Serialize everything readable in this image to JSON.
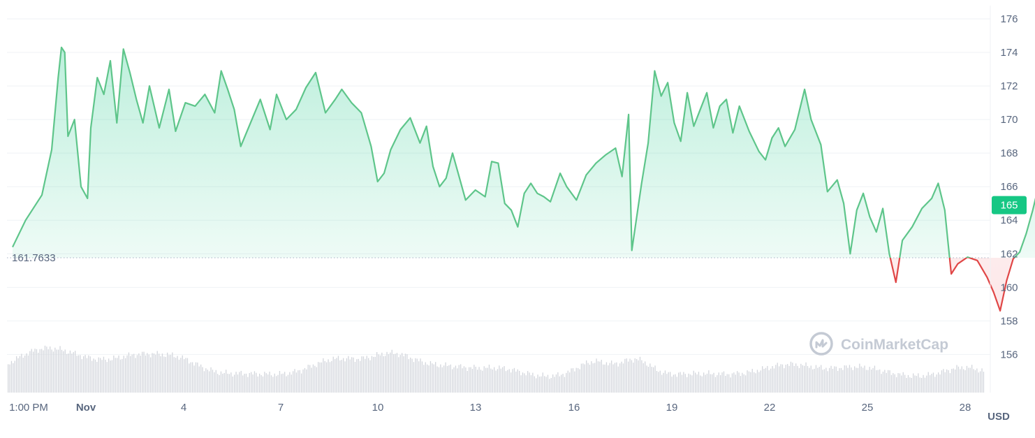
{
  "chart_data": {
    "type": "line",
    "x_tick_labels": [
      "1:00 PM",
      "Nov",
      "4",
      "7",
      "10",
      "13",
      "16",
      "19",
      "22",
      "25",
      "28"
    ],
    "y_tick_labels": [
      "176",
      "174",
      "172",
      "170",
      "168",
      "166",
      "164",
      "162",
      "160",
      "158",
      "156"
    ],
    "ylim": [
      154.5,
      176.5
    ],
    "baseline": 161.7633,
    "baseline_label": "161.7633",
    "current_price_label": "165",
    "current_price": 164.9,
    "unit_label": "USD",
    "watermark": "CoinMarketCap",
    "grid": true,
    "colors": {
      "above": "#16c784",
      "line_above": "#5ec58a",
      "below": "#e04646",
      "bar": "#d3d6dc",
      "grid": "#eff2f5"
    },
    "series": [
      {
        "points": [
          [
            0,
            162.4
          ],
          [
            0.4,
            164.0
          ],
          [
            0.9,
            165.5
          ],
          [
            1.2,
            168.2
          ],
          [
            1.4,
            172.5
          ],
          [
            1.5,
            174.3
          ],
          [
            1.6,
            174.0
          ],
          [
            1.7,
            169.0
          ],
          [
            1.9,
            170.0
          ],
          [
            2.1,
            166.0
          ],
          [
            2.3,
            165.3
          ],
          [
            2.4,
            169.5
          ],
          [
            2.6,
            172.5
          ],
          [
            2.8,
            171.5
          ],
          [
            3.0,
            173.5
          ],
          [
            3.2,
            169.8
          ],
          [
            3.4,
            174.2
          ],
          [
            3.6,
            172.8
          ],
          [
            3.8,
            171.2
          ],
          [
            4.0,
            169.8
          ],
          [
            4.2,
            172.0
          ],
          [
            4.5,
            169.5
          ],
          [
            4.8,
            171.8
          ],
          [
            5.0,
            169.3
          ],
          [
            5.3,
            171.0
          ],
          [
            5.6,
            170.8
          ],
          [
            5.9,
            171.5
          ],
          [
            6.2,
            170.4
          ],
          [
            6.4,
            172.9
          ],
          [
            6.6,
            171.8
          ],
          [
            6.8,
            170.6
          ],
          [
            7.0,
            168.4
          ],
          [
            7.3,
            169.8
          ],
          [
            7.6,
            171.2
          ],
          [
            7.9,
            169.4
          ],
          [
            8.1,
            171.5
          ],
          [
            8.4,
            170.0
          ],
          [
            8.7,
            170.6
          ],
          [
            9.0,
            171.9
          ],
          [
            9.3,
            172.8
          ],
          [
            9.6,
            170.4
          ],
          [
            9.9,
            171.2
          ],
          [
            10.1,
            171.8
          ],
          [
            10.4,
            171.0
          ],
          [
            10.7,
            170.4
          ],
          [
            11.0,
            168.4
          ],
          [
            11.2,
            166.3
          ],
          [
            11.4,
            166.8
          ],
          [
            11.6,
            168.2
          ],
          [
            11.9,
            169.4
          ],
          [
            12.2,
            170.1
          ],
          [
            12.5,
            168.6
          ],
          [
            12.7,
            169.6
          ],
          [
            12.9,
            167.2
          ],
          [
            13.1,
            166.0
          ],
          [
            13.3,
            166.5
          ],
          [
            13.5,
            168.0
          ],
          [
            13.7,
            166.6
          ],
          [
            13.9,
            165.2
          ],
          [
            14.2,
            165.8
          ],
          [
            14.5,
            165.4
          ],
          [
            14.7,
            167.5
          ],
          [
            14.9,
            167.4
          ],
          [
            15.1,
            165.0
          ],
          [
            15.3,
            164.6
          ],
          [
            15.5,
            163.6
          ],
          [
            15.7,
            165.6
          ],
          [
            15.9,
            166.2
          ],
          [
            16.1,
            165.6
          ],
          [
            16.3,
            165.4
          ],
          [
            16.5,
            165.1
          ],
          [
            16.8,
            166.8
          ],
          [
            17.0,
            166.0
          ],
          [
            17.3,
            165.2
          ],
          [
            17.6,
            166.7
          ],
          [
            17.9,
            167.4
          ],
          [
            18.2,
            167.9
          ],
          [
            18.5,
            168.3
          ],
          [
            18.7,
            166.6
          ],
          [
            18.9,
            170.3
          ],
          [
            19.0,
            162.2
          ],
          [
            19.3,
            166.2
          ],
          [
            19.5,
            168.6
          ],
          [
            19.7,
            172.9
          ],
          [
            19.9,
            171.4
          ],
          [
            20.1,
            172.2
          ],
          [
            20.3,
            169.8
          ],
          [
            20.5,
            168.7
          ],
          [
            20.7,
            171.6
          ],
          [
            20.9,
            169.6
          ],
          [
            21.1,
            170.6
          ],
          [
            21.3,
            171.6
          ],
          [
            21.5,
            169.5
          ],
          [
            21.7,
            170.8
          ],
          [
            21.9,
            171.2
          ],
          [
            22.1,
            169.2
          ],
          [
            22.3,
            170.8
          ],
          [
            22.6,
            169.3
          ],
          [
            22.9,
            168.1
          ],
          [
            23.1,
            167.6
          ],
          [
            23.3,
            168.9
          ],
          [
            23.5,
            169.5
          ],
          [
            23.7,
            168.4
          ],
          [
            24.0,
            169.4
          ],
          [
            24.3,
            171.8
          ],
          [
            24.5,
            170.0
          ],
          [
            24.8,
            168.5
          ],
          [
            25.0,
            165.7
          ],
          [
            25.3,
            166.4
          ],
          [
            25.5,
            165.0
          ],
          [
            25.7,
            162.0
          ],
          [
            25.9,
            164.6
          ],
          [
            26.1,
            165.6
          ],
          [
            26.3,
            164.2
          ],
          [
            26.5,
            163.3
          ],
          [
            26.7,
            164.7
          ],
          [
            26.9,
            162.0
          ],
          [
            27.1,
            160.3
          ],
          [
            27.3,
            162.8
          ],
          [
            27.6,
            163.6
          ],
          [
            27.9,
            164.7
          ],
          [
            28.2,
            165.3
          ],
          [
            28.4,
            166.2
          ],
          [
            28.6,
            164.6
          ],
          [
            28.7,
            162.7
          ],
          [
            28.8,
            160.8
          ],
          [
            29.0,
            161.4
          ],
          [
            29.3,
            161.8
          ],
          [
            29.6,
            161.6
          ],
          [
            29.9,
            160.6
          ],
          [
            30.1,
            159.7
          ],
          [
            30.3,
            158.6
          ],
          [
            30.5,
            160.4
          ],
          [
            30.7,
            161.7
          ],
          [
            30.9,
            162.1
          ],
          [
            31.1,
            163.2
          ],
          [
            31.3,
            164.6
          ],
          [
            31.5,
            166.2
          ],
          [
            31.7,
            164.5
          ],
          [
            31.9,
            162.8
          ],
          [
            32.1,
            161.7
          ],
          [
            32.4,
            162.0
          ],
          [
            32.7,
            161.5
          ],
          [
            32.9,
            161.0
          ],
          [
            33.1,
            161.6
          ],
          [
            33.3,
            160.2
          ],
          [
            33.5,
            160.8
          ],
          [
            33.7,
            161.2
          ],
          [
            33.9,
            160.0
          ],
          [
            34.1,
            160.6
          ],
          [
            34.4,
            160.6
          ],
          [
            34.6,
            161.0
          ],
          [
            34.8,
            160.4
          ],
          [
            35.0,
            161.1
          ],
          [
            35.2,
            160.9
          ],
          [
            35.4,
            160.2
          ],
          [
            35.6,
            161.3
          ],
          [
            35.8,
            162.4
          ],
          [
            36.0,
            163.6
          ],
          [
            36.3,
            164.0
          ],
          [
            36.6,
            164.6
          ],
          [
            36.9,
            164.2
          ],
          [
            37.2,
            164.8
          ],
          [
            37.5,
            164.1
          ],
          [
            37.8,
            165.0
          ],
          [
            38.1,
            164.4
          ],
          [
            38.4,
            163.8
          ],
          [
            38.7,
            165.1
          ],
          [
            38.9,
            164.4
          ],
          [
            39.1,
            165.4
          ],
          [
            39.3,
            165.1
          ],
          [
            39.5,
            162.4
          ],
          [
            39.6,
            158.7
          ],
          [
            39.8,
            159.0
          ],
          [
            40.0,
            161.7
          ],
          [
            40.2,
            162.4
          ],
          [
            40.4,
            163.6
          ],
          [
            40.6,
            162.7
          ],
          [
            40.9,
            163.4
          ],
          [
            41.2,
            163.1
          ],
          [
            41.5,
            164.1
          ],
          [
            41.8,
            165.2
          ],
          [
            42.1,
            166.8
          ],
          [
            42.3,
            165.4
          ],
          [
            42.6,
            167.2
          ],
          [
            42.9,
            166.3
          ],
          [
            43.2,
            167.4
          ],
          [
            43.5,
            168.8
          ],
          [
            43.7,
            169.3
          ],
          [
            43.9,
            168.1
          ],
          [
            44.2,
            168.5
          ],
          [
            44.4,
            170.2
          ],
          [
            44.7,
            170.9
          ],
          [
            45.0,
            171.1
          ],
          [
            45.3,
            170.6
          ],
          [
            45.6,
            172.0
          ],
          [
            45.9,
            172.4
          ],
          [
            46.1,
            171.5
          ],
          [
            46.4,
            172.8
          ],
          [
            46.7,
            172.2
          ],
          [
            46.9,
            169.9
          ],
          [
            47.1,
            170.5
          ],
          [
            47.3,
            168.5
          ],
          [
            47.6,
            169.6
          ],
          [
            47.8,
            166.2
          ],
          [
            48.0,
            168.4
          ],
          [
            48.3,
            166.9
          ],
          [
            48.5,
            165.6
          ],
          [
            48.8,
            166.2
          ],
          [
            49.0,
            166.6
          ],
          [
            49.2,
            165.5
          ],
          [
            49.4,
            164.6
          ],
          [
            49.6,
            165.0
          ],
          [
            49.8,
            164.8
          ]
        ]
      }
    ]
  }
}
